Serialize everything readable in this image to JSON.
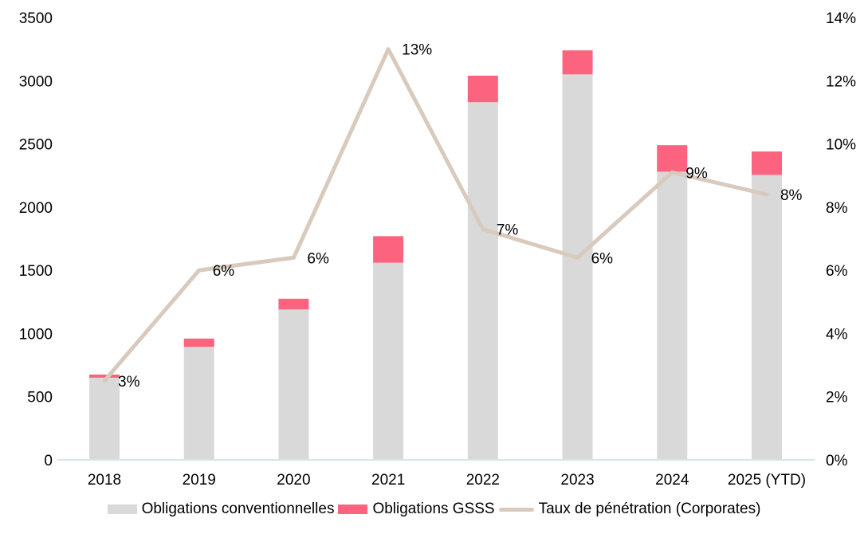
{
  "chart_data": {
    "type": "bar",
    "subtype": "stacked-column-with-line-overlay",
    "title": "",
    "xlabel": "",
    "ylabel": "",
    "categories": [
      "2018",
      "2019",
      "2020",
      "2021",
      "2022",
      "2023",
      "2024",
      "2025 (YTD)"
    ],
    "series": [
      {
        "name": "Obligations conventionnelles",
        "type": "bar",
        "axis": "left",
        "color": "#D9D9D9",
        "values": [
          650,
          895,
          1190,
          1560,
          2830,
          3050,
          2280,
          2255
        ]
      },
      {
        "name": "Obligations GSSS",
        "type": "bar",
        "axis": "left",
        "color": "#FB637E",
        "values": [
          25,
          65,
          85,
          210,
          210,
          190,
          210,
          185
        ]
      },
      {
        "name": "Taux de pénétration (Corporates)",
        "type": "line",
        "axis": "right",
        "color": "#D8CABD",
        "values": [
          2.5,
          6.0,
          6.4,
          13.0,
          7.3,
          6.4,
          9.1,
          8.4
        ],
        "point_labels": [
          "3%",
          "6%",
          "6%",
          "13%",
          "7%",
          "6%",
          "9%",
          "8%"
        ]
      }
    ],
    "left_axis": {
      "min": 0,
      "max": 3500,
      "step": 500,
      "tick_labels": [
        "3500",
        "3000",
        "2500",
        "2000",
        "1500",
        "1000",
        "500",
        "0"
      ]
    },
    "right_axis": {
      "min": 0,
      "max": 14,
      "step": 2,
      "tick_labels": [
        "14%",
        "12%",
        "10%",
        "8%",
        "6%",
        "4%",
        "2%",
        "0%"
      ]
    },
    "legend_position": "bottom",
    "grid": false,
    "bar_mode": "stacked"
  },
  "colors": {
    "baseline_axis": "#D9E4E8",
    "text": "#000000",
    "background": "#FFFFFF"
  }
}
